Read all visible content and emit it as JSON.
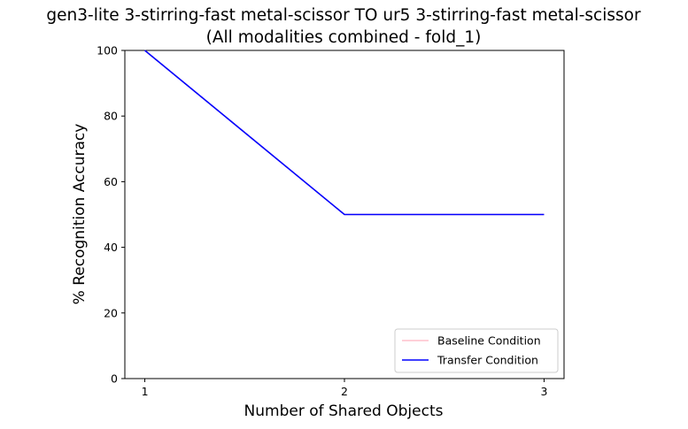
{
  "chart_data": {
    "type": "line",
    "title_line1": "gen3-lite 3-stirring-fast metal-scissor TO ur5 3-stirring-fast metal-scissor",
    "title_line2": "(All modalities combined - fold_1)",
    "xlabel": "Number of Shared Objects",
    "ylabel": "% Recognition Accuracy",
    "x": [
      1,
      2,
      3
    ],
    "xticks": [
      "1",
      "2",
      "3"
    ],
    "yticks": [
      "0",
      "20",
      "40",
      "60",
      "80",
      "100"
    ],
    "ylim": [
      0,
      100
    ],
    "xlim": [
      0.9,
      3.1
    ],
    "grid": false,
    "legend_position": "lower-right",
    "series": [
      {
        "name": "Baseline Condition",
        "values": [
          100,
          50,
          50
        ],
        "color": "#ffc0cb"
      },
      {
        "name": "Transfer Condition",
        "values": [
          100,
          50,
          50
        ],
        "color": "#0000ff"
      }
    ]
  }
}
